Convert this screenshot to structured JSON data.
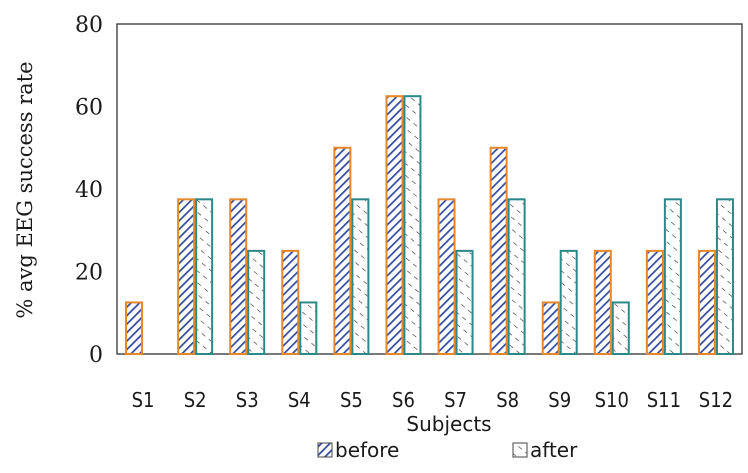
{
  "chart_data": {
    "type": "bar",
    "categories": [
      "S1",
      "S2",
      "S3",
      "S4",
      "S5",
      "S6",
      "S7",
      "S8",
      "S9",
      "S10",
      "S11",
      "S12"
    ],
    "series": [
      {
        "name": "before",
        "values": [
          12.5,
          37.5,
          37.5,
          25,
          50,
          62.5,
          37.5,
          50,
          12.5,
          25,
          25,
          25
        ]
      },
      {
        "name": "after",
        "values": [
          0,
          37.5,
          25,
          12.5,
          37.5,
          62.5,
          25,
          37.5,
          25,
          12.5,
          37.5,
          37.5
        ]
      }
    ],
    "xlabel": "Subjects",
    "ylabel": "% avg EEG success rate",
    "ylim": [
      0,
      80
    ],
    "yticks": [
      "0",
      "20",
      "40",
      "60",
      "80"
    ],
    "legend_position": "bottom",
    "colors": {
      "before_outline": "#e8872a",
      "before_hatch": "#2e4a9e",
      "after_outline": "#2a8a8a",
      "after_hatch": "#2a2a2a",
      "frame": "#333333"
    }
  }
}
